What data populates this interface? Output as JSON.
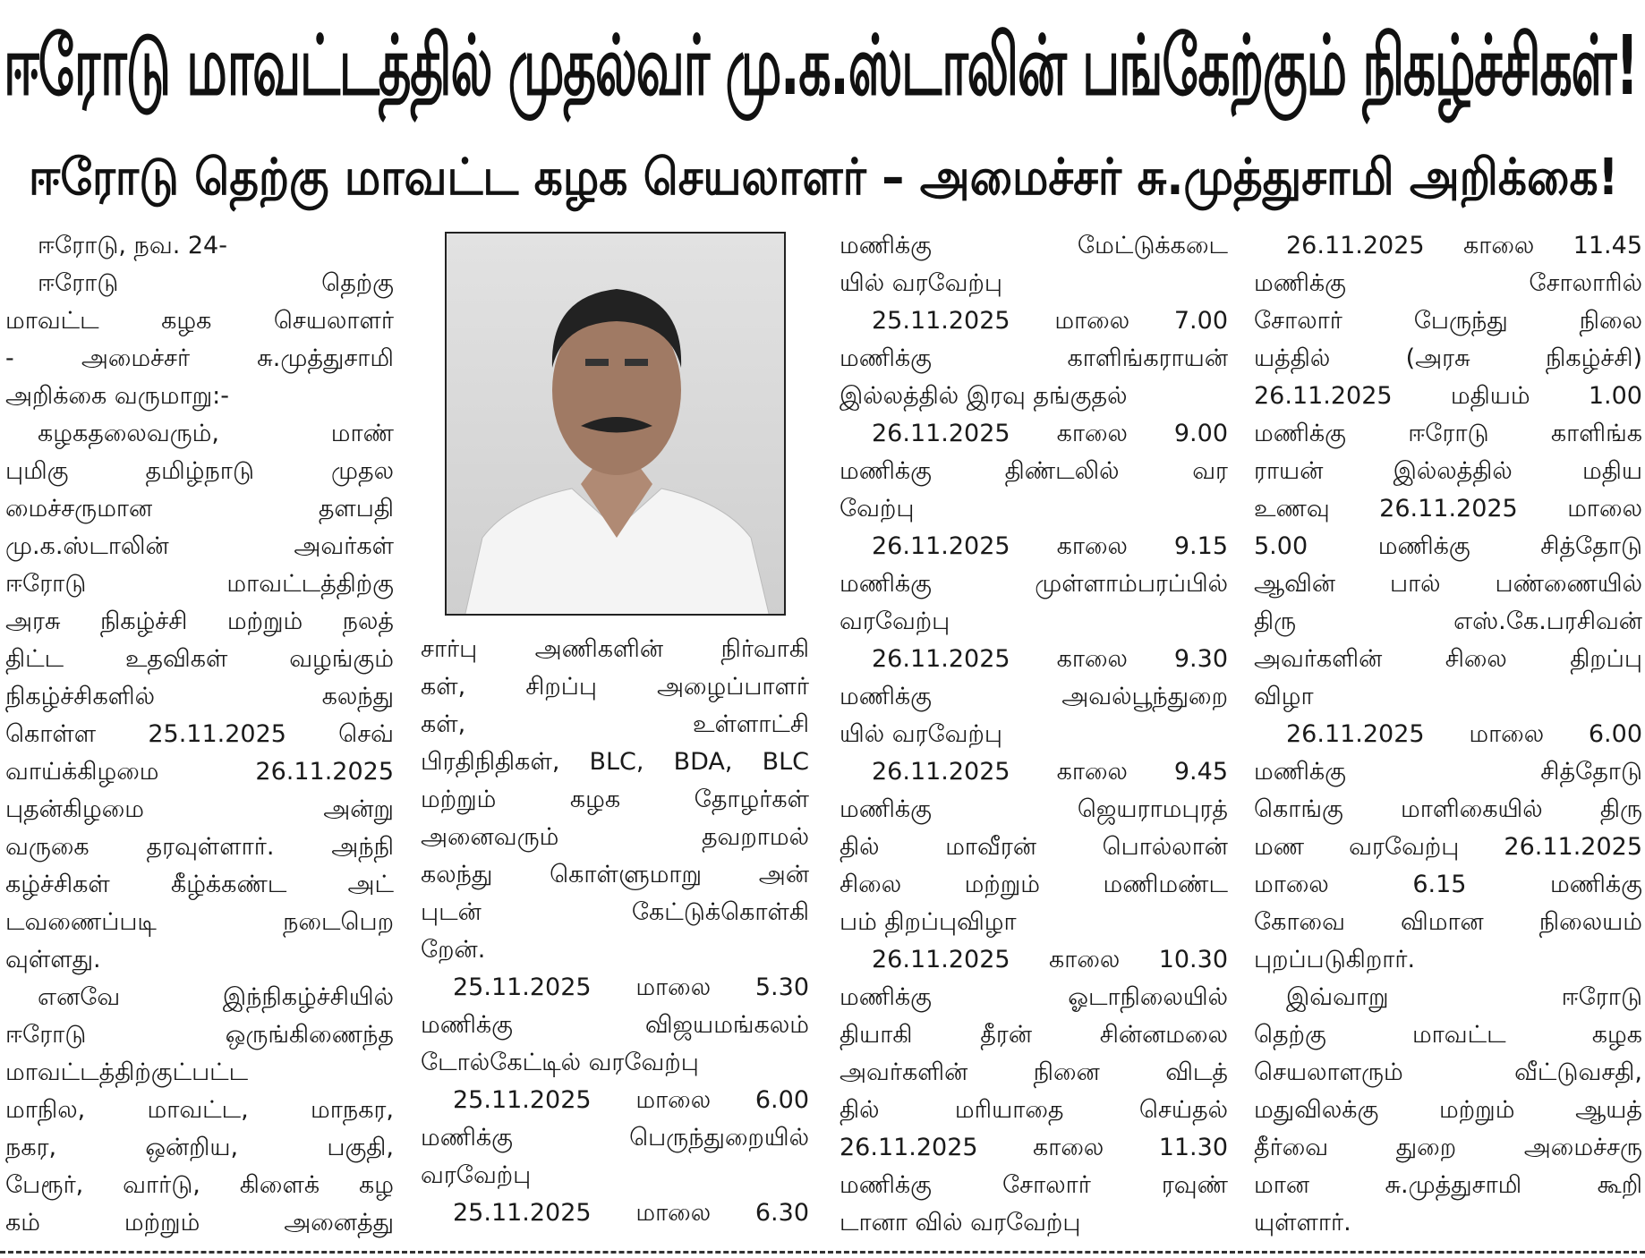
{
  "headline": "ஈரோடு மாவட்டத்தில் முதல்வர் மு.க.ஸ்டாலின் பங்கேற்கும் நிகழ்ச்சிகள்!",
  "subheadline": "ஈரோடு தெற்கு மாவட்ட கழக செயலாளர் – அமைச்சர் சு.முத்துசாமி அறிக்கை!",
  "photo": {
    "subject": "portrait-photo"
  },
  "columns": [
    {
      "paragraphs": [
        {
          "lines": [
            "ஈரோடு, நவ. 24-"
          ]
        },
        {
          "lines": [
            "ஈரோடு தெற்கு",
            "மாவட்ட கழக செயலாளர்",
            "- அமைச்சர் சு.முத்துசாமி",
            "அறிக்கை வருமாறு:-"
          ]
        },
        {
          "lines": [
            "கழகதலைவரும், மாண்",
            "புமிகு தமிழ்நாடு முதல",
            "மைச்சருமான தளபதி",
            "மு.க.ஸ்டாலின் அவர்கள்",
            "ஈரோடு மாவட்டத்திற்கு",
            "அரசு நிகழ்ச்சி மற்றும் நலத்",
            "திட்ட உதவிகள் வழங்கும்",
            "நிகழ்ச்சிகளில் கலந்து",
            "கொள்ள 25.11.2025 செவ்",
            "வாய்க்கிழமை 26.11.2025",
            "புதன்கிழமை அன்று",
            "வருகை தரவுள்ளார். அந்நி",
            "கழ்ச்சிகள் கீழ்க்கண்ட அட்",
            "டவணைப்படி நடைபெற",
            "வுள்ளது."
          ]
        },
        {
          "lines": [
            "எனவே இந்நிகழ்ச்சியில்",
            "ஈரோடு ஒருங்கிணைந்த",
            "மாவட்டத்திற்குட்பட்ட",
            "மாநில, மாவட்ட, மாநகர,",
            "நகர, ஒன்றிய, பகுதி,",
            "பேரூர், வார்டு, கிளைக் கழ",
            "கம் மற்றும் அனைத்து"
          ],
          "continues": true
        }
      ]
    },
    {
      "paragraphs": [
        {
          "lines": [
            "சார்பு அணிகளின் நிர்வாகி",
            "கள், சிறப்பு அழைப்பாளர்",
            "கள், உள்ளாட்சி",
            "பிரதிநிதிகள், BLC, BDA, BLC",
            "மற்றும் கழக தோழர்கள்",
            "அனைவரும் தவறாமல்",
            "கலந்து கொள்ளுமாறு அன்",
            "புடன் கேட்டுக்கொள்கி",
            "றேன்."
          ],
          "noindent": true
        },
        {
          "lines": [
            "25.11.2025 மாலை 5.30",
            "மணிக்கு விஜயமங்கலம்",
            "டோல்கேட்டில் வரவேற்பு"
          ]
        },
        {
          "lines": [
            "25.11.2025 மாலை 6.00",
            "மணிக்கு பெருந்துறையில்",
            "வரவேற்பு"
          ]
        },
        {
          "lines": [
            "25.11.2025 மாலை 6.30"
          ],
          "continues": true
        }
      ]
    },
    {
      "paragraphs": [
        {
          "lines": [
            "மணிக்கு மேட்டுக்கடை",
            "யில் வரவேற்பு"
          ],
          "noindent": true
        },
        {
          "lines": [
            "25.11.2025 மாலை 7.00",
            "மணிக்கு காளிங்கராயன்",
            "இல்லத்தில் இரவு தங்குதல்"
          ]
        },
        {
          "lines": [
            "26.11.2025 காலை 9.00",
            "மணிக்கு திண்டலில் வர",
            "வேற்பு"
          ]
        },
        {
          "lines": [
            "26.11.2025 காலை 9.15",
            "மணிக்கு முள்ளாம்பரப்பில்",
            "வரவேற்பு"
          ]
        },
        {
          "lines": [
            "26.11.2025 காலை 9.30",
            "மணிக்கு அவல்பூந்துறை",
            "யில் வரவேற்பு"
          ]
        },
        {
          "lines": [
            "26.11.2025 காலை 9.45",
            "மணிக்கு ஜெயராமபுரத்",
            "தில் மாவீரன் பொல்லான்",
            "சிலை மற்றும் மணிமண்ட",
            "பம் திறப்புவிழா"
          ]
        },
        {
          "lines": [
            "26.11.2025 காலை 10.30",
            "மணிக்கு ஓடாநிலையில்",
            "தியாகி தீரன் சின்னமலை",
            "அவர்களின் நினை விடத்",
            "தில் மரியாதை செய்தல்",
            "26.11.2025 காலை 11.30",
            "மணிக்கு சோலார் ரவுண்",
            "டானா வில் வரவேற்பு"
          ]
        }
      ]
    },
    {
      "paragraphs": [
        {
          "lines": [
            "26.11.2025 காலை 11.45",
            "மணிக்கு சோலாரில்",
            "சோலார் பேருந்து நிலை",
            "யத்தில் (அரசு நிகழ்ச்சி)",
            "26.11.2025 மதியம் 1.00",
            "மணிக்கு ஈரோடு காளிங்க",
            "ராயன் இல்லத்தில் மதிய",
            "உணவு 26.11.2025 மாலை",
            "5.00 மணிக்கு சித்தோடு",
            "ஆவின் பால் பண்ணையில்",
            "திரு எஸ்.கே.பரசிவன்",
            "அவர்களின் சிலை திறப்பு",
            "விழா"
          ]
        },
        {
          "lines": [
            "26.11.2025 மாலை 6.00",
            "மணிக்கு சித்தோடு",
            "கொங்கு மாளிகையில் திரு",
            "மண வரவேற்பு 26.11.2025",
            "மாலை 6.15 மணிக்கு",
            "கோவை விமான நிலையம்",
            "புறப்படுகிறார்."
          ]
        },
        {
          "lines": [
            "இவ்வாறு ஈரோடு",
            "தெற்கு மாவட்ட கழக",
            "செயலாளரும் வீட்டுவசதி,",
            "மதுவிலக்கு மற்றும் ஆயத்",
            "தீர்வை துறை அமைச்சரு",
            "மான சு.முத்துசாமி கூறி",
            "யுள்ளார்."
          ]
        }
      ]
    }
  ]
}
